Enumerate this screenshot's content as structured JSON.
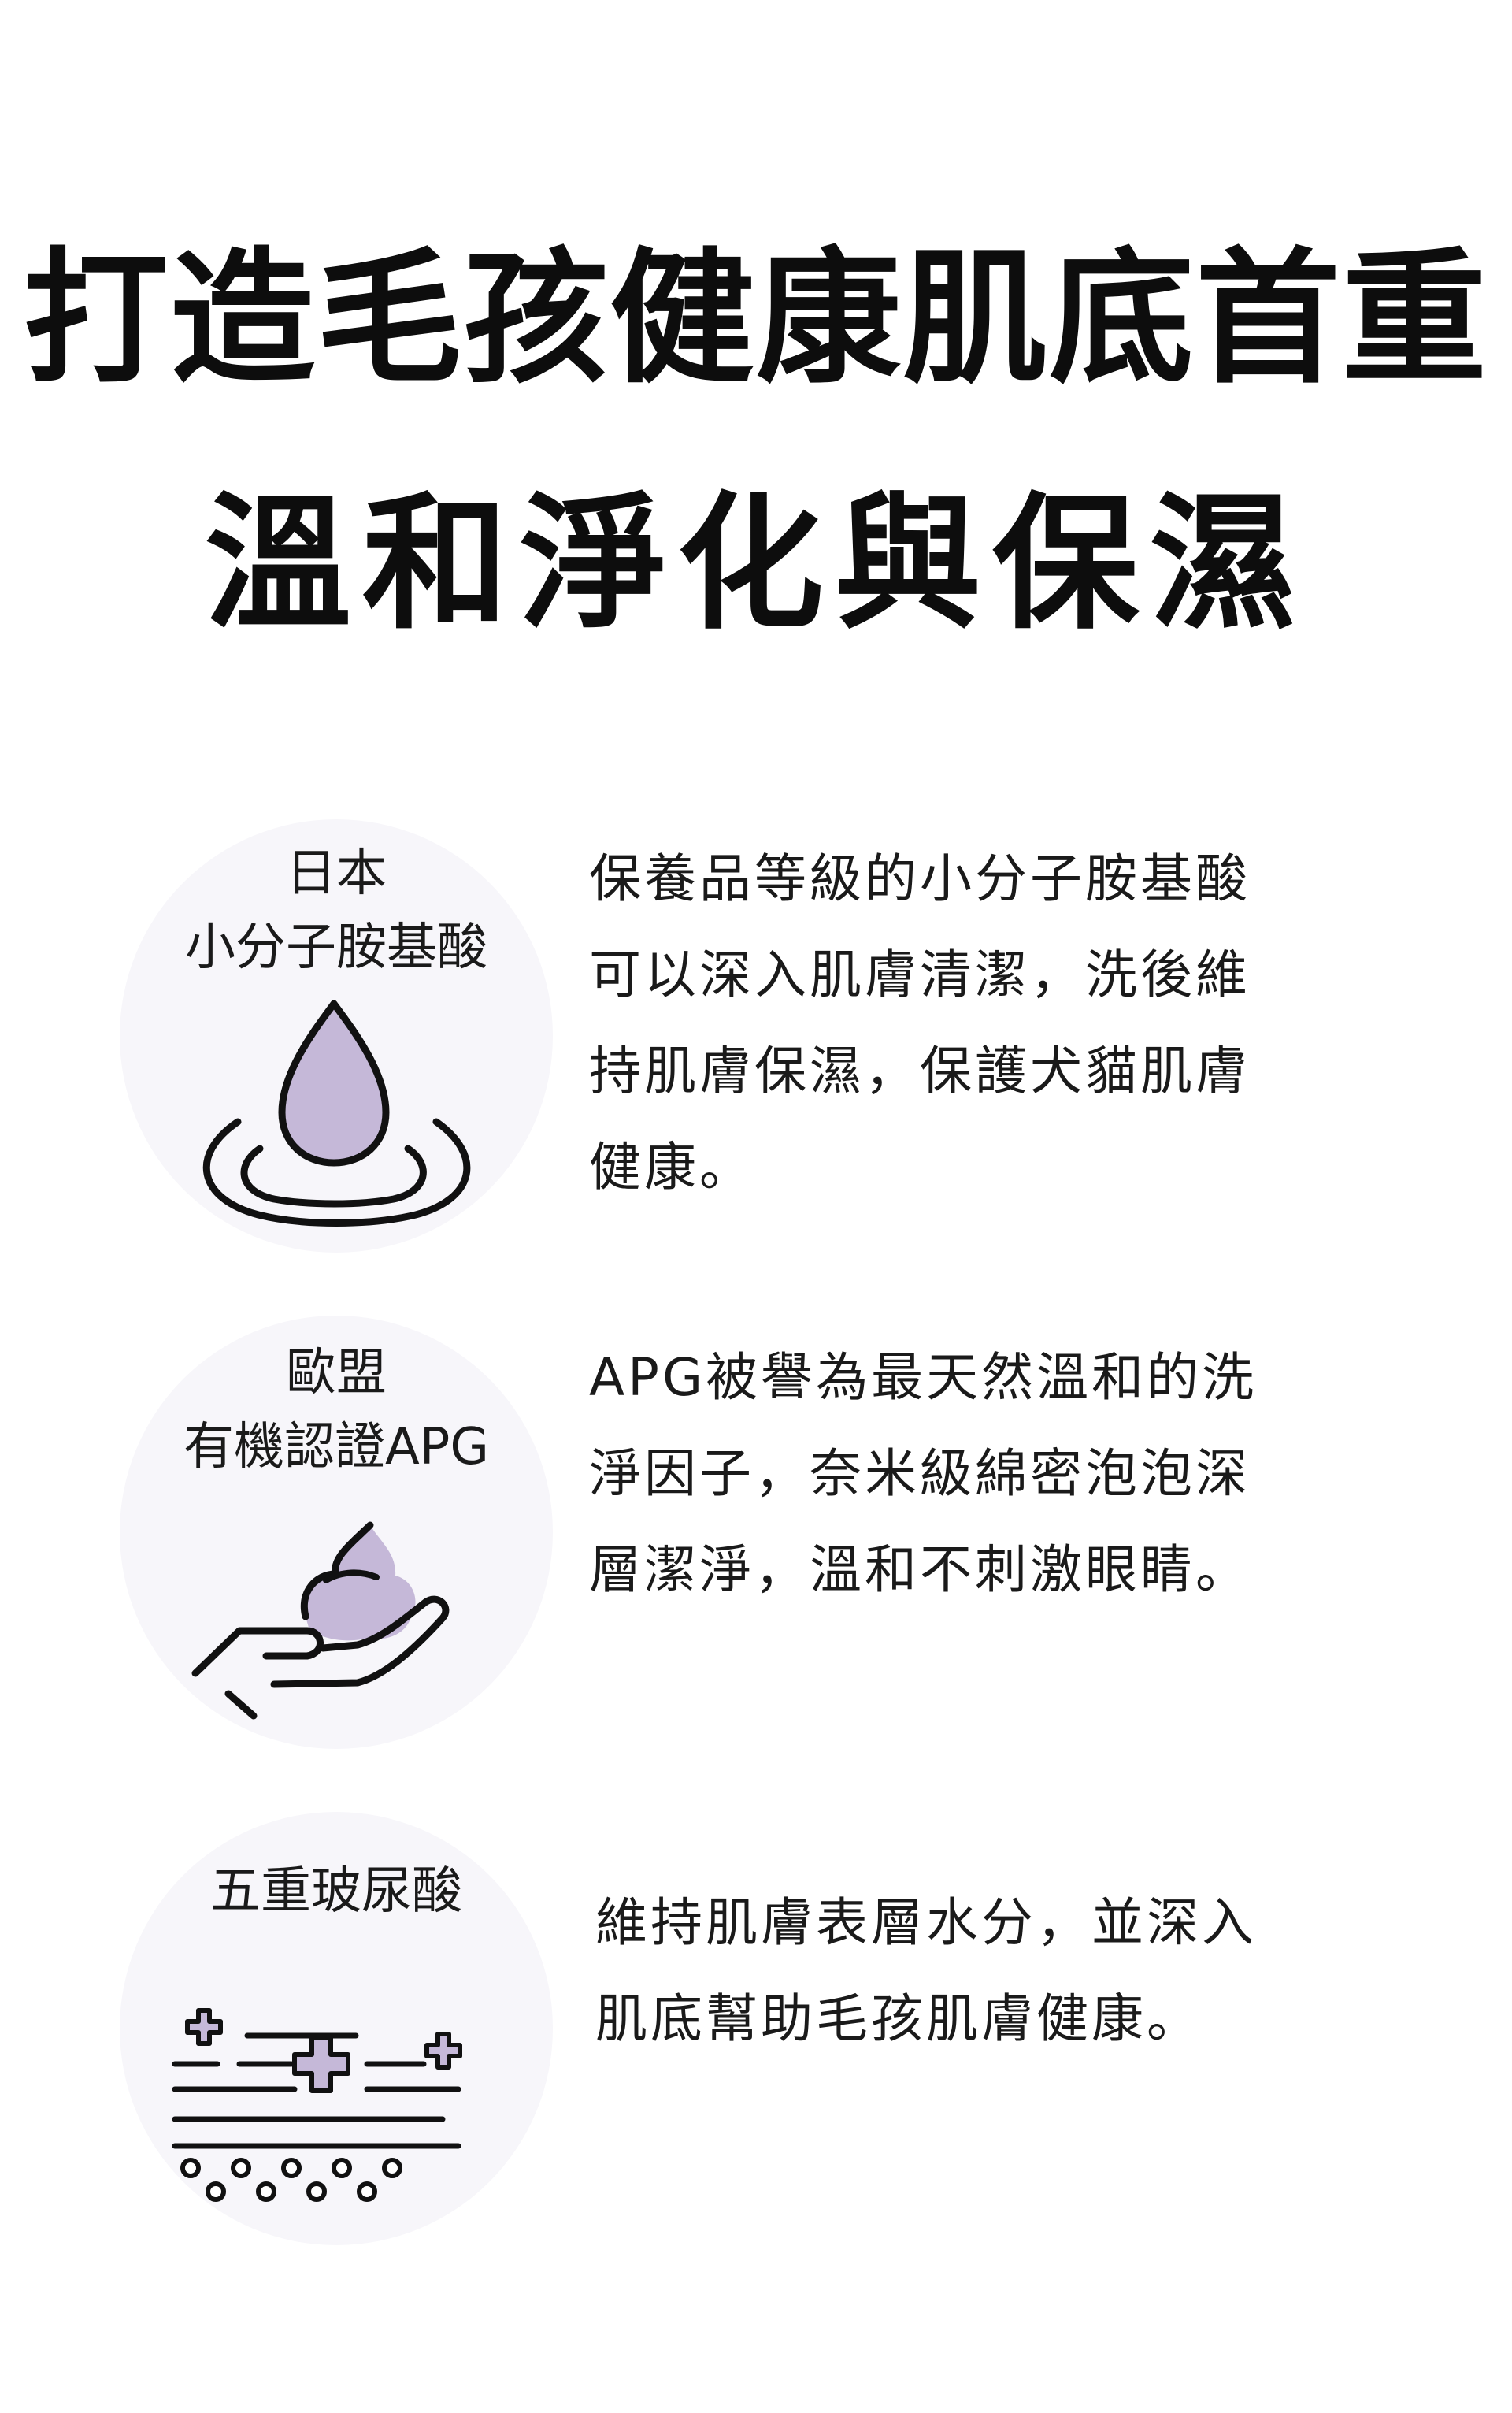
{
  "headline": {
    "line1": "打造毛孩健康肌底首重",
    "line2": "溫和淨化與保濕"
  },
  "colors": {
    "accent_lavender": "#c5b8d8",
    "circle_bg": "#f7f6fa",
    "text": "#111111"
  },
  "features": [
    {
      "title_lines": [
        "日本",
        "小分子胺基酸"
      ],
      "icon": "water-drop-icon",
      "description_lines": [
        "保養品等級的小分子胺基酸",
        "可以深入肌膚清潔，洗後維",
        "持肌膚保濕，保護犬貓肌膚",
        "健康。"
      ]
    },
    {
      "title_lines": [
        "歐盟",
        "有機認證APG"
      ],
      "icon": "foam-hand-icon",
      "description_lines": [
        "APG被譽為最天然溫和的洗",
        "淨因子，奈米級綿密泡泡深",
        "層潔淨，溫和不刺激眼睛。"
      ]
    },
    {
      "title_lines": [
        "五重玻尿酸"
      ],
      "icon": "hyaluronic-layers-icon",
      "description_lines": [
        "維持肌膚表層水分，並深入",
        "肌底幫助毛孩肌膚健康。"
      ]
    }
  ]
}
